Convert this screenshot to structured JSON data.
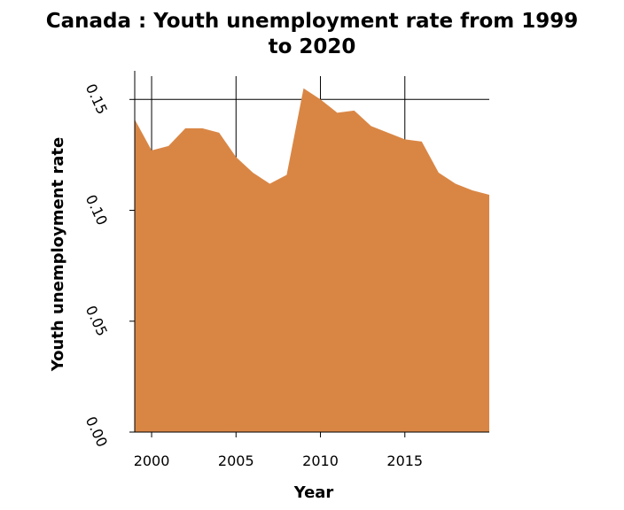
{
  "chart_data": {
    "type": "area",
    "title": "Canada : Youth unemployment rate from 1999\nto 2020",
    "xlabel": "Year",
    "ylabel": "Youth unemployment rate",
    "xlim": [
      1999,
      2020
    ],
    "ylim": [
      0,
      0.15
    ],
    "x_ticks": [
      2000,
      2005,
      2010,
      2015
    ],
    "x_tick_labels": [
      "2000",
      "2005",
      "2010",
      "2015"
    ],
    "y_ticks": [
      0,
      0.05,
      0.1,
      0.15
    ],
    "y_tick_labels": [
      "0.00",
      "0.05",
      "0.10",
      "0.15"
    ],
    "grid": true,
    "fill_color": "#d98645",
    "x": [
      1999,
      2000,
      2001,
      2002,
      2003,
      2004,
      2005,
      2006,
      2007,
      2008,
      2009,
      2010,
      2011,
      2012,
      2013,
      2014,
      2015,
      2016,
      2017,
      2018,
      2019,
      2020
    ],
    "values": [
      0.141,
      0.127,
      0.129,
      0.137,
      0.137,
      0.135,
      0.124,
      0.117,
      0.112,
      0.116,
      0.155,
      0.15,
      0.144,
      0.145,
      0.138,
      0.135,
      0.132,
      0.131,
      0.117,
      0.112,
      0.109,
      0.107
    ]
  }
}
